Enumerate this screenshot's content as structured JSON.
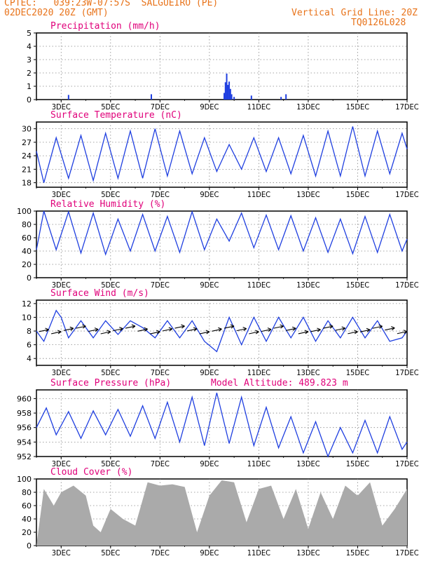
{
  "header": {
    "line1": "CPTEC:   039:23W-07:57S  SALGUEIRO (PE)",
    "line2": "02DEC2020 20Z (GMT)",
    "right1": "Vertical Grid Line: 20Z",
    "right2": "TQ0126L028"
  },
  "model_altitude": "Model Altitude: 489.823 m",
  "x_ticks": [
    "3DEC",
    "5DEC",
    "7DEC",
    "9DEC",
    "11DEC",
    "13DEC",
    "15DEC",
    "17DEC"
  ],
  "colors": {
    "header": "#e8731a",
    "title": "#e0007a",
    "line": "#1f3fe0",
    "cloud": "#aaaaaa",
    "grid": "#888888"
  },
  "chart_data": [
    {
      "type": "bar",
      "title": "Precipitation (mm/h)",
      "ylim": [
        0,
        5
      ],
      "yticks": [
        "0",
        "1",
        "2",
        "3",
        "4",
        "5"
      ],
      "x_range_days": [
        2.0,
        17.0
      ],
      "x": [
        3.3,
        6.65,
        9.6,
        9.65,
        9.7,
        9.75,
        9.8,
        9.85,
        9.9,
        10.0,
        10.7,
        11.9,
        12.1
      ],
      "values": [
        0.35,
        0.4,
        0.5,
        1.3,
        1.95,
        1.1,
        1.35,
        0.8,
        0.4,
        0.2,
        0.3,
        0.2,
        0.4
      ]
    },
    {
      "type": "line",
      "title": "Surface Temperature (nC)",
      "ylim": [
        17,
        31.5
      ],
      "yticks": [
        "18",
        "21",
        "24",
        "27",
        "30"
      ],
      "x_range_days": [
        2.0,
        17.0
      ],
      "x": [
        2.0,
        2.3,
        2.8,
        3.3,
        3.8,
        4.3,
        4.8,
        5.3,
        5.8,
        6.3,
        6.8,
        7.3,
        7.8,
        8.3,
        8.8,
        9.3,
        9.8,
        10.3,
        10.8,
        11.3,
        11.8,
        12.3,
        12.8,
        13.3,
        13.8,
        14.3,
        14.8,
        15.3,
        15.8,
        16.3,
        16.8,
        17.0
      ],
      "values": [
        25,
        18,
        28,
        19,
        28.5,
        18.5,
        29,
        19,
        29.5,
        19,
        30,
        19.5,
        29.5,
        20,
        28,
        20.5,
        26.5,
        21,
        28,
        20.5,
        28,
        20,
        28.5,
        19.5,
        29.5,
        19.5,
        30.5,
        19.5,
        29.5,
        20,
        29,
        25.5
      ]
    },
    {
      "type": "line",
      "title": "Relative Humidity (%)",
      "ylim": [
        0,
        100
      ],
      "yticks": [
        "0",
        "20",
        "40",
        "60",
        "80",
        "100"
      ],
      "x_range_days": [
        2.0,
        17.0
      ],
      "x": [
        2.0,
        2.3,
        2.8,
        3.3,
        3.8,
        4.3,
        4.8,
        5.3,
        5.8,
        6.3,
        6.8,
        7.3,
        7.8,
        8.3,
        8.8,
        9.3,
        9.8,
        10.3,
        10.8,
        11.3,
        11.8,
        12.3,
        12.8,
        13.3,
        13.8,
        14.3,
        14.8,
        15.3,
        15.8,
        16.3,
        16.8,
        17.0
      ],
      "values": [
        42,
        100,
        42,
        99,
        37,
        97,
        35,
        88,
        40,
        95,
        40,
        92,
        38,
        99,
        42,
        88,
        55,
        97,
        45,
        94,
        42,
        93,
        40,
        90,
        38,
        88,
        36,
        92,
        38,
        95,
        40,
        58
      ]
    },
    {
      "type": "line",
      "title": "Surface Wind (m/s)",
      "ylim": [
        3,
        12.5
      ],
      "yticks": [
        "4",
        "6",
        "8",
        "10",
        "12"
      ],
      "x_range_days": [
        2.0,
        17.0
      ],
      "x": [
        2.0,
        2.3,
        2.8,
        3.0,
        3.3,
        3.8,
        4.3,
        4.8,
        5.3,
        5.8,
        6.3,
        6.8,
        7.3,
        7.8,
        8.3,
        8.8,
        9.3,
        9.8,
        10.3,
        10.8,
        11.3,
        11.8,
        12.3,
        12.8,
        13.3,
        13.8,
        14.3,
        14.8,
        15.3,
        15.8,
        16.3,
        16.8,
        17.0
      ],
      "values": [
        8,
        6.5,
        11,
        10,
        7,
        9.5,
        7,
        9.5,
        7.5,
        9.5,
        8.5,
        7,
        9.5,
        7,
        9.5,
        6.5,
        5,
        10,
        6,
        10,
        6.5,
        10,
        7,
        10,
        6.5,
        9.5,
        7,
        10,
        7,
        9.5,
        6.5,
        7,
        8
      ]
    },
    {
      "type": "line",
      "title": "Surface Pressure (hPa)",
      "ylim": [
        952,
        961.2
      ],
      "yticks": [
        "952",
        "954",
        "956",
        "958",
        "960"
      ],
      "x_range_days": [
        2.0,
        17.0
      ],
      "x": [
        2.0,
        2.4,
        2.8,
        3.3,
        3.8,
        4.3,
        4.8,
        5.3,
        5.8,
        6.3,
        6.8,
        7.3,
        7.8,
        8.3,
        8.8,
        9.3,
        9.8,
        10.3,
        10.8,
        11.3,
        11.8,
        12.3,
        12.8,
        13.3,
        13.8,
        14.3,
        14.8,
        15.3,
        15.8,
        16.3,
        16.8,
        17.0
      ],
      "values": [
        956,
        958.7,
        955,
        958.2,
        954.5,
        958.3,
        955,
        958.5,
        954.8,
        959,
        954.5,
        959.5,
        954,
        960.2,
        953.5,
        960.8,
        953.8,
        960.2,
        953.5,
        958.8,
        953.2,
        957.5,
        952.5,
        956.8,
        952,
        956,
        952.5,
        957,
        952.5,
        957.5,
        953,
        954
      ]
    },
    {
      "type": "area",
      "title": "Cloud Cover (%)",
      "ylim": [
        0,
        100
      ],
      "yticks": [
        "0",
        "20",
        "40",
        "60",
        "80",
        "100"
      ],
      "x_range_days": [
        2.0,
        17.0
      ],
      "x": [
        2.0,
        2.3,
        2.7,
        3.0,
        3.5,
        4.0,
        4.3,
        4.6,
        5.0,
        5.5,
        6.0,
        6.5,
        7.0,
        7.5,
        8.0,
        8.5,
        9.0,
        9.5,
        10.0,
        10.5,
        11.0,
        11.5,
        12.0,
        12.5,
        13.0,
        13.5,
        14.0,
        14.5,
        15.0,
        15.5,
        16.0,
        16.5,
        17.0
      ],
      "values": [
        0,
        85,
        60,
        80,
        90,
        75,
        30,
        20,
        55,
        40,
        30,
        95,
        90,
        92,
        88,
        20,
        75,
        98,
        95,
        35,
        85,
        90,
        40,
        85,
        25,
        80,
        40,
        90,
        75,
        95,
        30,
        55,
        85
      ]
    }
  ]
}
